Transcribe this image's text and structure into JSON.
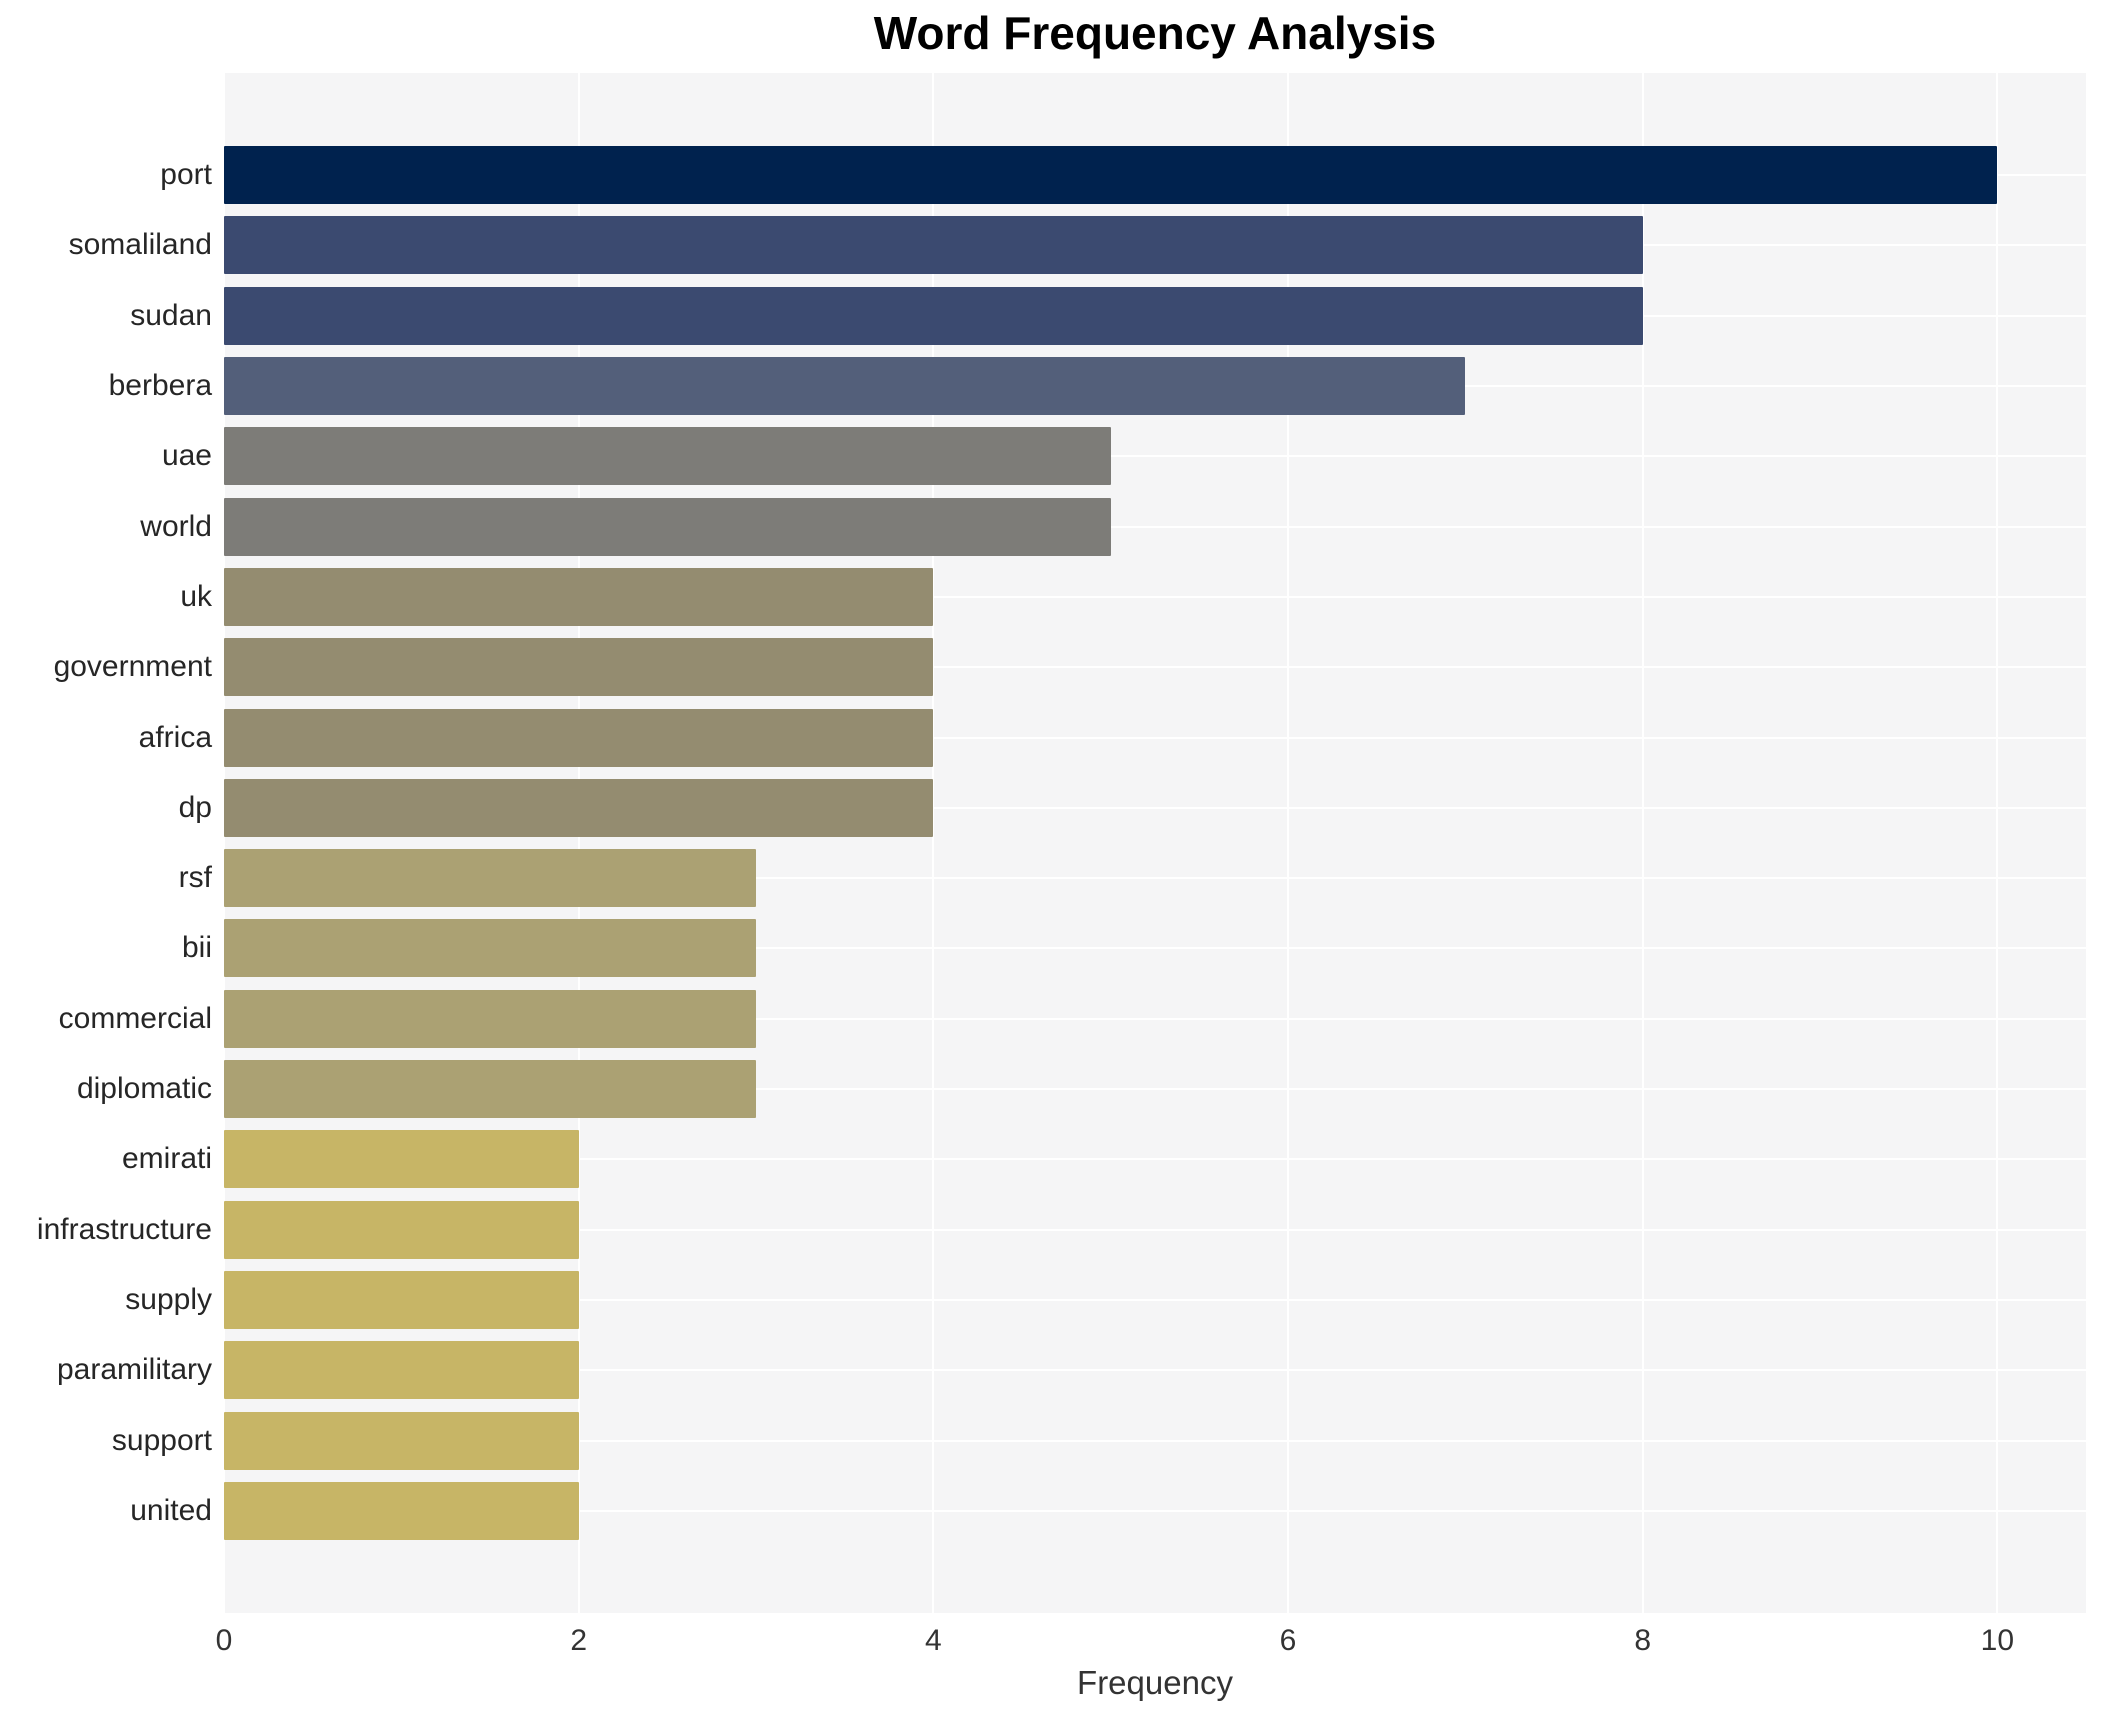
{
  "chart_data": {
    "type": "bar",
    "orientation": "horizontal",
    "title": "Word Frequency Analysis",
    "xlabel": "Frequency",
    "ylabel": "",
    "categories": [
      "port",
      "somaliland",
      "sudan",
      "berbera",
      "uae",
      "world",
      "uk",
      "government",
      "africa",
      "dp",
      "rsf",
      "bii",
      "commercial",
      "diplomatic",
      "emirati",
      "infrastructure",
      "supply",
      "paramilitary",
      "support",
      "united"
    ],
    "values": [
      10,
      8,
      8,
      7,
      5,
      5,
      4,
      4,
      4,
      4,
      3,
      3,
      3,
      3,
      2,
      2,
      2,
      2,
      2,
      2
    ],
    "bar_colors": [
      "#00224e",
      "#3b4a70",
      "#3b4a70",
      "#535f7a",
      "#7d7c78",
      "#7d7c78",
      "#948c70",
      "#948c70",
      "#948c70",
      "#948c70",
      "#aba173",
      "#aba173",
      "#aba173",
      "#aba173",
      "#c7b566",
      "#c7b566",
      "#c7b566",
      "#c7b566",
      "#c7b566",
      "#c7b566"
    ],
    "xticks": [
      0,
      2,
      4,
      6,
      8,
      10
    ],
    "xlim": [
      0,
      10.5
    ],
    "grid": true,
    "legend_position": "none",
    "plot_background": "#f5f5f6",
    "gridline_color": "#ffffff",
    "colormap": "cividis"
  }
}
